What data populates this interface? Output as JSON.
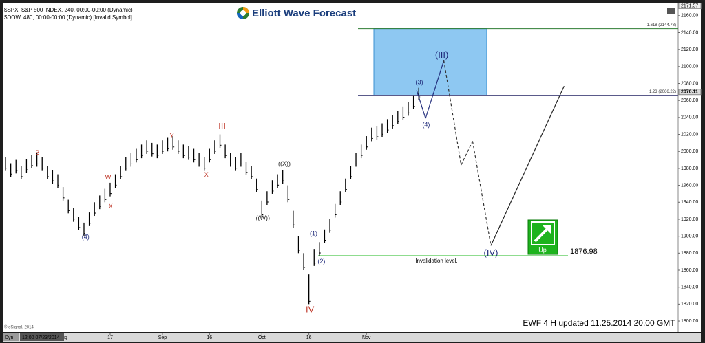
{
  "chart_data": {
    "type": "ohlc",
    "header": [
      "$SPX, S&P 500 INDEX, 240, 00:00-00:00 (Dynamic)",
      "$DOW, 480, 00:00-00:00 (Dynamic) [Invalid Symbol]"
    ],
    "logo": "Elliott Wave Forecast",
    "footer": "EWF 4 H  updated  11.25.2014  20.00 GMT",
    "copyright": "© eSignal, 2014",
    "mode": "Dyn",
    "cursor_date": "12:00 07/23/2014",
    "xlim": [
      -0.4,
      128.6
    ],
    "ylim": [
      1789.5,
      2172
    ],
    "xticks": [
      {
        "value": 11,
        "label": "Aug"
      },
      {
        "value": 20,
        "label": "17"
      },
      {
        "value": 30,
        "label": "Sep"
      },
      {
        "value": 39,
        "label": "16"
      },
      {
        "value": 49,
        "label": "Oct"
      },
      {
        "value": 58,
        "label": "16"
      },
      {
        "value": 69,
        "label": "Nov"
      }
    ],
    "yticks": [
      {
        "value": 1800,
        "label": "1800.00"
      },
      {
        "value": 1820,
        "label": "1820.00"
      },
      {
        "value": 1840,
        "label": "1840.00"
      },
      {
        "value": 1860,
        "label": "1860.00"
      },
      {
        "value": 1880,
        "label": "1880.00"
      },
      {
        "value": 1900,
        "label": "1900.00"
      },
      {
        "value": 1920,
        "label": "1920.00"
      },
      {
        "value": 1940,
        "label": "1940.00"
      },
      {
        "value": 1960,
        "label": "1960.00"
      },
      {
        "value": 1980,
        "label": "1980.00"
      },
      {
        "value": 2000,
        "label": "2000.00"
      },
      {
        "value": 2020,
        "label": "2020.00"
      },
      {
        "value": 2040,
        "label": "2040.00"
      },
      {
        "value": 2060,
        "label": "2060.00"
      },
      {
        "value": 2080,
        "label": "2080.00"
      },
      {
        "value": 2100,
        "label": "2100.00"
      },
      {
        "value": 2120,
        "label": "2120.00"
      },
      {
        "value": 2140,
        "label": "2140.00"
      },
      {
        "value": 2160,
        "label": "2160.00"
      }
    ],
    "axis_high": 2171.57,
    "last_price": 2070.11,
    "series": [
      {
        "name": "$SPX",
        "color": "#000000",
        "high": [
          1993,
          1986,
          1990,
          1983,
          1991,
          1996,
          1998,
          1993,
          1983,
          1978,
          1973,
          1958,
          1943,
          1933,
          1923,
          1916,
          1928,
          1940,
          1948,
          1956,
          1963,
          1973,
          1983,
          1993,
          1998,
          2003,
          2008,
          2013,
          2010,
          2008,
          2013,
          2016,
          2018,
          2013,
          2008,
          2006,
          2003,
          1998,
          1993,
          2003,
          2013,
          2020,
          2008,
          1998,
          1993,
          1998,
          1988,
          1983,
          1968,
          1942,
          1953,
          1966,
          1973,
          1978,
          1960,
          1930,
          1900,
          1880,
          1855,
          1885,
          1893,
          1908,
          1920,
          1938,
          1953,
          1968,
          1983,
          1998,
          2008,
          2018,
          2028,
          2030,
          2033,
          2038,
          2043,
          2048,
          2053,
          2058,
          2066,
          2075
        ],
        "low": [
          1977,
          1970,
          1974,
          1967,
          1975,
          1980,
          1982,
          1977,
          1967,
          1962,
          1957,
          1942,
          1927,
          1917,
          1907,
          1900,
          1912,
          1924,
          1932,
          1940,
          1947,
          1957,
          1967,
          1977,
          1982,
          1987,
          1992,
          1997,
          1994,
          1992,
          1997,
          2000,
          2002,
          1997,
          1992,
          1990,
          1987,
          1982,
          1977,
          1987,
          1997,
          2004,
          1992,
          1982,
          1977,
          1982,
          1972,
          1967,
          1952,
          1922,
          1937,
          1950,
          1957,
          1962,
          1940,
          1910,
          1880,
          1860,
          1820,
          1865,
          1877,
          1892,
          1904,
          1922,
          1937,
          1952,
          1967,
          1982,
          1992,
          2002,
          2012,
          2014,
          2017,
          2022,
          2027,
          2032,
          2037,
          2042,
          2050,
          2061
        ]
      }
    ],
    "levels": [
      {
        "label": "1.618 (2144.78)",
        "value": 2144.78
      },
      {
        "label": "1.23 (2066.22)",
        "value": 2066.22
      }
    ],
    "invalidation": {
      "value": 1876.98,
      "text": "Invalidation level."
    },
    "projection": {
      "x": [
        78.6,
        80.3,
        83.8,
        87.1,
        89.3,
        92.8,
        106.8
      ],
      "values": [
        2072,
        2039,
        2107,
        1984,
        2012,
        1889,
        2077
      ]
    },
    "signal": "Up",
    "annotations": [
      {
        "text": "B",
        "x": 6.1,
        "y": 1998,
        "color": "#c0392b"
      },
      {
        "text": "W",
        "x": 19.6,
        "y": 1969,
        "color": "#c0392b"
      },
      {
        "text": "X",
        "x": 20.1,
        "y": 1935,
        "color": "#c0392b"
      },
      {
        "text": "(4)",
        "x": 15.3,
        "y": 1899,
        "color": "#1f2a7a"
      },
      {
        "text": "Y",
        "x": 31.8,
        "y": 2018,
        "color": "#c0392b"
      },
      {
        "text": "X",
        "x": 38.4,
        "y": 1972,
        "color": "#c0392b"
      },
      {
        "text": "III",
        "x": 41.4,
        "y": 2029,
        "color": "#c0392b"
      },
      {
        "text": "((W))",
        "x": 49.2,
        "y": 1921,
        "color": "#222222"
      },
      {
        "text": "((X))",
        "x": 53.3,
        "y": 1985,
        "color": "#222222"
      },
      {
        "text": "IV",
        "x": 58.2,
        "y": 1813,
        "color": "#c0392b"
      },
      {
        "text": "(1)",
        "x": 58.9,
        "y": 1903,
        "color": "#1f2a7a"
      },
      {
        "text": "(2)",
        "x": 60.4,
        "y": 1870,
        "color": "#1f2a7a"
      },
      {
        "text": "(3)",
        "x": 79.1,
        "y": 2081,
        "color": "#1f2a7a"
      },
      {
        "text": "(4)",
        "x": 80.4,
        "y": 2031,
        "color": "#1f2a7a"
      },
      {
        "text": "(III)",
        "x": 83.4,
        "y": 2113,
        "color": "#1f2a7a"
      },
      {
        "text": "(IV)",
        "x": 92.8,
        "y": 1880,
        "color": "#1f2a7a"
      }
    ]
  }
}
